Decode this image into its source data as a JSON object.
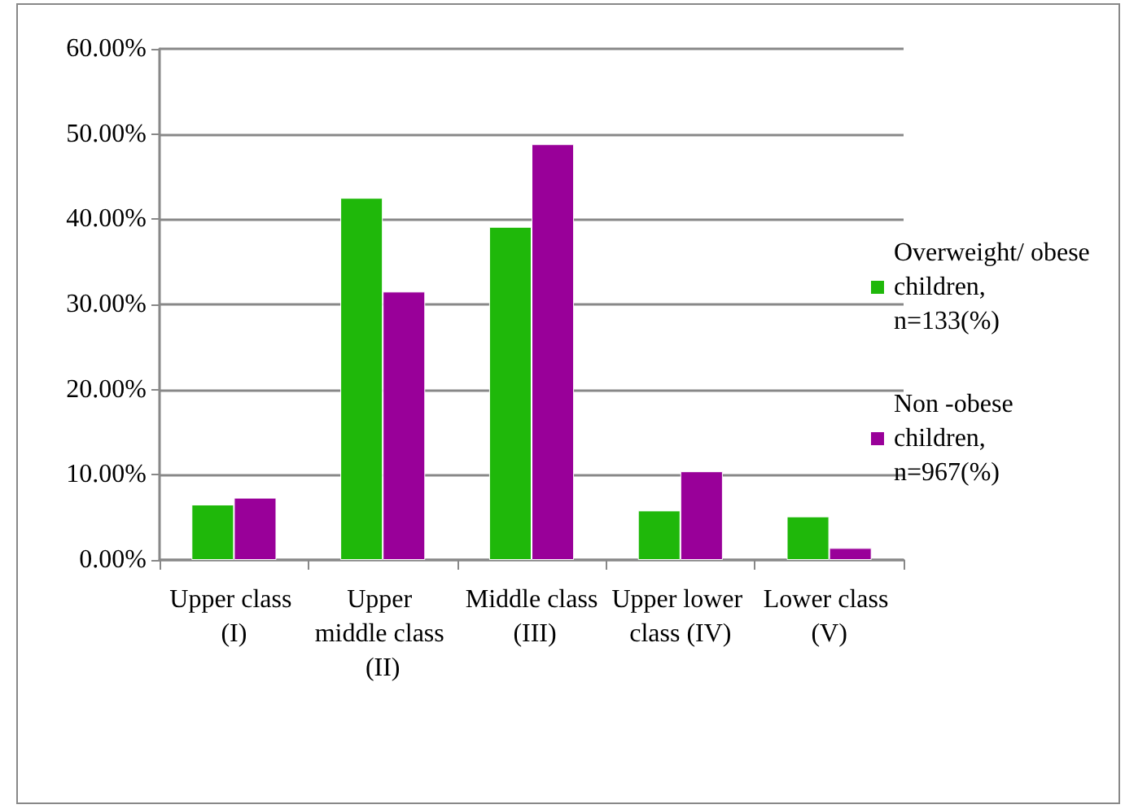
{
  "chart_data": {
    "type": "bar",
    "categories": [
      "Upper class (I)",
      "Upper middle class (II)",
      "Middle class (III)",
      "Upper lower class (IV)",
      "Lower class (V)"
    ],
    "series": [
      {
        "name": "Overweight/ obese children, n=133(%)",
        "color": "#1fb80a",
        "values": [
          6.5,
          42.5,
          39.1,
          5.8,
          5.1
        ]
      },
      {
        "name": "Non -obese children, n=967(%)",
        "color": "#990099",
        "values": [
          7.3,
          31.5,
          48.8,
          10.4,
          1.4
        ]
      }
    ],
    "ylim": [
      0,
      60
    ],
    "yticks": [
      {
        "value": 0,
        "label": "0.00%"
      },
      {
        "value": 10,
        "label": "10.00%"
      },
      {
        "value": 20,
        "label": "20.00%"
      },
      {
        "value": 30,
        "label": "30.00%"
      },
      {
        "value": 40,
        "label": "40.00%"
      },
      {
        "value": 50,
        "label": "50.00%"
      },
      {
        "value": 60,
        "label": "60.00%"
      }
    ],
    "grid": "y",
    "legend": "right"
  }
}
